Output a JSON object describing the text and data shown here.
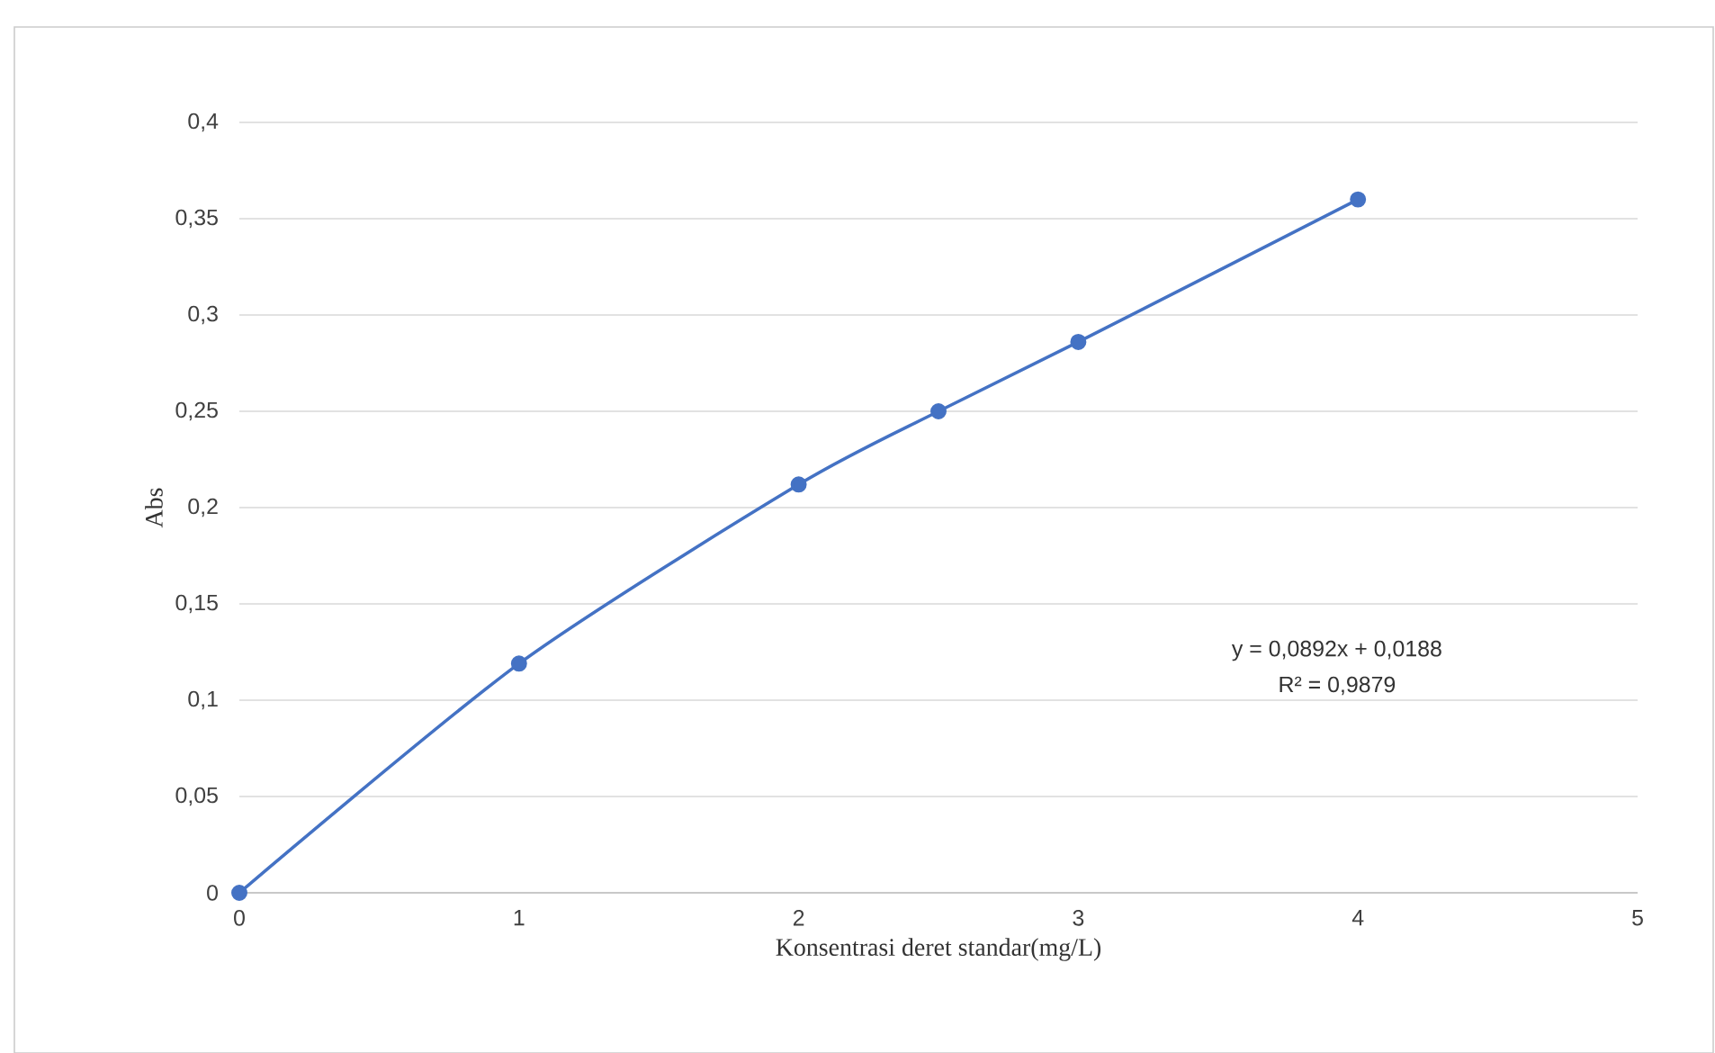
{
  "chart_data": {
    "type": "line",
    "xlabel": "Konsentrasi deret standar(mg/L)",
    "ylabel": "Abs",
    "x": [
      0,
      1,
      2,
      2.5,
      3,
      4
    ],
    "series": [
      {
        "color": "#4472c4",
        "values": [
          0,
          0.119,
          0.212,
          0.25,
          0.286,
          0.36
        ]
      }
    ],
    "xlim": [
      0,
      5
    ],
    "ylim": [
      0,
      0.4
    ],
    "xticks": [
      0,
      1,
      2,
      3,
      4,
      5
    ],
    "yticks": [
      0,
      {
        "value": 0.05,
        "label": "0,05"
      },
      {
        "value": 0.1,
        "label": "0,1"
      },
      {
        "value": 0.15,
        "label": "0,15"
      },
      {
        "value": 0.2,
        "label": "0,2"
      },
      {
        "value": 0.25,
        "label": "0,25"
      },
      {
        "value": 0.3,
        "label": "0,3"
      },
      {
        "value": 0.35,
        "label": "0,35"
      },
      {
        "value": 0.4,
        "label": "0,4"
      }
    ],
    "grid": "y",
    "marker": "circle",
    "annotations": [
      "y = 0,0892x + 0,0188",
      "R² = 0,9879"
    ]
  }
}
